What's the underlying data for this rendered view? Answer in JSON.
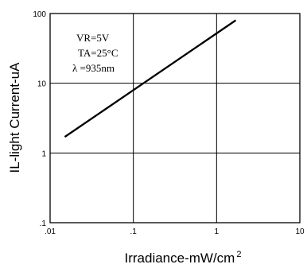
{
  "chart_data": {
    "type": "line",
    "title": "",
    "xlabel": "Irradiance-mW/cm",
    "xlabel_superscript": "2",
    "ylabel": "IL-light Current-uA",
    "x_scale": "log",
    "y_scale": "log",
    "xlim": [
      0.01,
      10
    ],
    "ylim": [
      0.1,
      100
    ],
    "grid": true,
    "x_ticks": [
      {
        "value": 0.01,
        "label": ".01"
      },
      {
        "value": 0.1,
        "label": ".1"
      },
      {
        "value": 1,
        "label": "1"
      },
      {
        "value": 10,
        "label": "10"
      }
    ],
    "y_ticks": [
      {
        "value": 0.1,
        "label": ".1"
      },
      {
        "value": 1,
        "label": "1"
      },
      {
        "value": 10,
        "label": "10"
      },
      {
        "value": 100,
        "label": "100"
      }
    ],
    "series": [
      {
        "x": [
          0.015,
          1.7
        ],
        "y": [
          1.7,
          80
        ],
        "color": "#000000"
      }
    ],
    "annotations": [
      "VR=5V",
      "TA=25°C",
      "λ =935nm"
    ]
  }
}
